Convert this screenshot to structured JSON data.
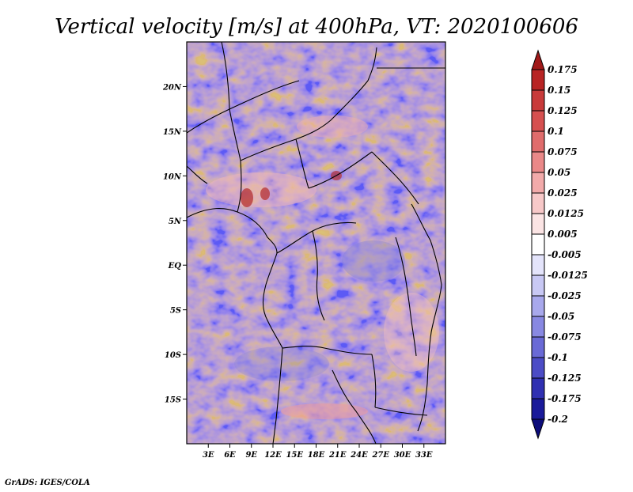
{
  "title": "Vertical velocity [m/s] at 400hPa, VT: 2020100606",
  "footer": "GrADS: IGES/COLA",
  "map": {
    "lat_range": [
      -20,
      25
    ],
    "lon_range": [
      0,
      36
    ],
    "lat_labels": [
      "20N",
      "15N",
      "10N",
      "5N",
      "EQ",
      "5S",
      "10S",
      "15S"
    ],
    "lat_values": [
      20,
      15,
      10,
      5,
      0,
      -5,
      -10,
      -15
    ],
    "lon_labels": [
      "3E",
      "6E",
      "9E",
      "12E",
      "15E",
      "18E",
      "21E",
      "24E",
      "27E",
      "30E",
      "33E"
    ],
    "lon_values": [
      3,
      6,
      9,
      12,
      15,
      18,
      21,
      24,
      27,
      30,
      33
    ]
  },
  "colorbar": {
    "labels": [
      "0.175",
      "0.15",
      "0.125",
      "0.1",
      "0.075",
      "0.05",
      "0.025",
      "0.0125",
      "0.005",
      "-0.005",
      "-0.0125",
      "-0.025",
      "-0.05",
      "-0.075",
      "-0.1",
      "-0.125",
      "-0.175",
      "-0.2"
    ],
    "colors": [
      "#a01818",
      "#b82424",
      "#c83a3a",
      "#d65050",
      "#e06c6c",
      "#ea8888",
      "#f2aaaa",
      "#f7c8c8",
      "#fbe4e4",
      "#ffffff",
      "#e4e4fb",
      "#c8c8f4",
      "#a8a8ec",
      "#8888e2",
      "#6a6ad6",
      "#4c4cc6",
      "#3030b2",
      "#1a1a9a",
      "#0c0c7a"
    ]
  }
}
